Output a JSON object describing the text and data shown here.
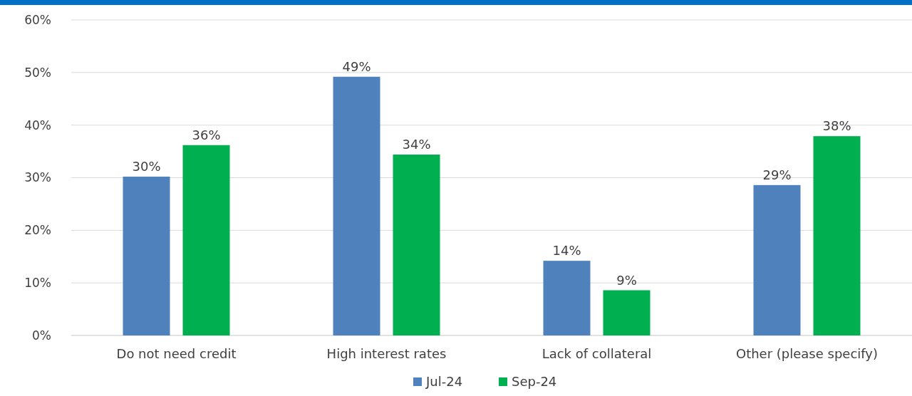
{
  "chart_data": {
    "type": "bar",
    "categories": [
      "Do not need credit",
      "High interest rates",
      "Lack of collateral",
      "Other (please specify)"
    ],
    "series": [
      {
        "name": "Jul-24",
        "color": "#4f81bd",
        "values": [
          30.2,
          49.2,
          14.2,
          28.6
        ],
        "value_labels": [
          "30%",
          "49%",
          "14%",
          "29%"
        ]
      },
      {
        "name": "Sep-24",
        "color": "#00b050",
        "values": [
          36.2,
          34.4,
          8.6,
          37.9
        ],
        "value_labels": [
          "36%",
          "34%",
          "9%",
          "38%"
        ]
      }
    ],
    "ylim": [
      0,
      60
    ],
    "yticks": [
      {
        "value": 0,
        "label": "0%"
      },
      {
        "value": 10,
        "label": "10%"
      },
      {
        "value": 20,
        "label": "20%"
      },
      {
        "value": 30,
        "label": "30%"
      },
      {
        "value": 40,
        "label": "40%"
      },
      {
        "value": 50,
        "label": "50%"
      },
      {
        "value": 60,
        "label": "60%"
      }
    ],
    "grid": "y",
    "legend": "bottom"
  }
}
